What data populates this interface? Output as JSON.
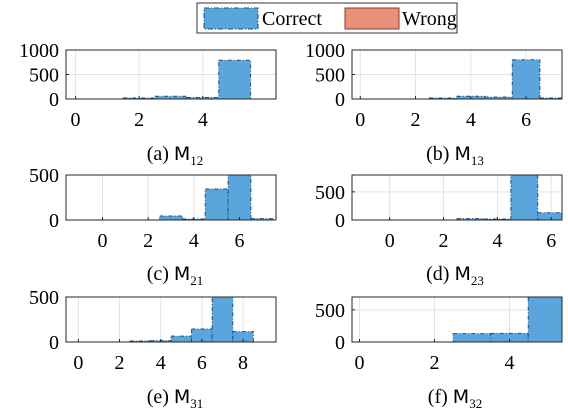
{
  "legend": {
    "items": [
      {
        "label": "Correct",
        "color": "#5aa6dc",
        "edge": "#1f4e79"
      },
      {
        "label": "Wrong",
        "color": "#e8907a",
        "edge": "#8a3a2a"
      }
    ]
  },
  "chart_data": [
    {
      "type": "bar",
      "caption_prefix": "(a) ",
      "caption_main": "M",
      "caption_sub": "12",
      "xlim": [
        -0.3,
        6.3
      ],
      "ylim": [
        0,
        1000
      ],
      "xticks": [
        0,
        2,
        4
      ],
      "yticks": [
        0,
        500,
        1000
      ],
      "series": [
        {
          "name": "Correct",
          "bins": [
            [
              1.5,
              2.5,
              15
            ],
            [
              2.5,
              3.5,
              55
            ],
            [
              3.5,
              4.5,
              30
            ],
            [
              4.5,
              5.5,
              790
            ]
          ]
        }
      ]
    },
    {
      "type": "bar",
      "caption_prefix": "(b) ",
      "caption_main": "M",
      "caption_sub": "13",
      "xlim": [
        -0.3,
        7.3
      ],
      "ylim": [
        0,
        1000
      ],
      "xticks": [
        0,
        2,
        4,
        6
      ],
      "yticks": [
        0,
        500,
        1000
      ],
      "series": [
        {
          "name": "Correct",
          "bins": [
            [
              2.5,
              3.5,
              5
            ],
            [
              3.5,
              4.5,
              55
            ],
            [
              4.5,
              5.5,
              40
            ],
            [
              5.5,
              6.5,
              800
            ],
            [
              6.5,
              7.5,
              10
            ]
          ]
        }
      ]
    },
    {
      "type": "bar",
      "caption_prefix": "(c) ",
      "caption_main": "M",
      "caption_sub": "21",
      "xlim": [
        -1.6,
        7.6
      ],
      "ylim": [
        0,
        500
      ],
      "xticks": [
        0,
        2,
        4,
        6
      ],
      "yticks": [
        0,
        500
      ],
      "series": [
        {
          "name": "Correct",
          "bins": [
            [
              2.5,
              3.5,
              45
            ],
            [
              3.5,
              4.5,
              5
            ],
            [
              4.5,
              5.5,
              345
            ],
            [
              5.5,
              6.5,
              500
            ],
            [
              6.5,
              7.5,
              15
            ]
          ]
        }
      ]
    },
    {
      "type": "bar",
      "caption_prefix": "(d) ",
      "caption_main": "M",
      "caption_sub": "23",
      "xlim": [
        -1.4,
        6.4
      ],
      "ylim": [
        0,
        800
      ],
      "xticks": [
        0,
        2,
        4,
        6
      ],
      "yticks": [
        0,
        500
      ],
      "series": [
        {
          "name": "Correct",
          "bins": [
            [
              2.5,
              3.5,
              25
            ],
            [
              3.5,
              4.5,
              15
            ],
            [
              4.5,
              5.5,
              800
            ],
            [
              5.5,
              6.5,
              130
            ]
          ]
        }
      ]
    },
    {
      "type": "bar",
      "caption_prefix": "(e) ",
      "caption_main": "M",
      "caption_sub": "31",
      "xlim": [
        -0.6,
        9.6
      ],
      "ylim": [
        0,
        500
      ],
      "xticks": [
        0,
        2,
        4,
        6,
        8
      ],
      "yticks": [
        0,
        500
      ],
      "series": [
        {
          "name": "Correct",
          "bins": [
            [
              3.5,
              4.5,
              15
            ],
            [
              4.5,
              5.5,
              65
            ],
            [
              5.5,
              6.5,
              145
            ],
            [
              6.5,
              7.5,
              500
            ],
            [
              7.5,
              8.5,
              115
            ],
            [
              2.5,
              3.5,
              10
            ]
          ]
        }
      ]
    },
    {
      "type": "bar",
      "caption_prefix": "(f) ",
      "caption_main": "M",
      "caption_sub": "32",
      "xlim": [
        -0.2,
        5.4
      ],
      "ylim": [
        0,
        700
      ],
      "xticks": [
        0,
        2,
        4
      ],
      "yticks": [
        0,
        500
      ],
      "series": [
        {
          "name": "Correct",
          "bins": [
            [
              2.5,
              3.5,
              130
            ],
            [
              3.5,
              4.5,
              135
            ],
            [
              4.5,
              5.5,
              700
            ]
          ]
        }
      ]
    }
  ]
}
